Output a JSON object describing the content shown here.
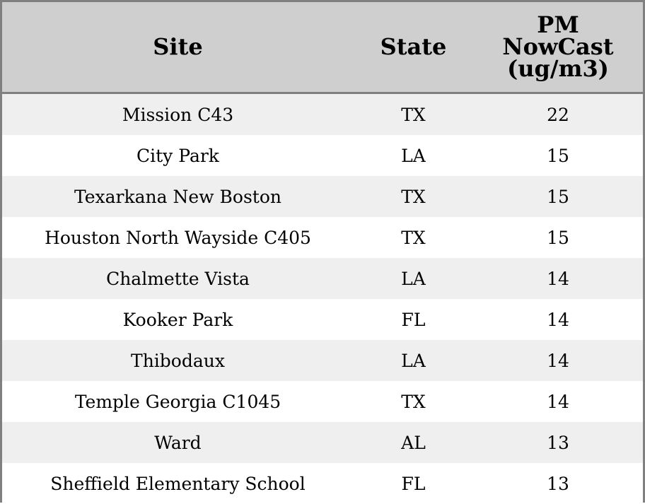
{
  "chart_data": {
    "type": "table",
    "columns": [
      "Site",
      "State",
      "PM NowCast (ug/m3)"
    ],
    "header_lines": {
      "pm": [
        "PM",
        "NowCast",
        "(ug/m3)"
      ]
    },
    "rows": [
      {
        "site": "Mission C43",
        "state": "TX",
        "pm": "22"
      },
      {
        "site": "City Park",
        "state": "LA",
        "pm": "15"
      },
      {
        "site": "Texarkana New Boston",
        "state": "TX",
        "pm": "15"
      },
      {
        "site": "Houston North Wayside C405",
        "state": "TX",
        "pm": "15"
      },
      {
        "site": "Chalmette Vista",
        "state": "LA",
        "pm": "14"
      },
      {
        "site": "Kooker Park",
        "state": "FL",
        "pm": "14"
      },
      {
        "site": "Thibodaux",
        "state": "LA",
        "pm": "14"
      },
      {
        "site": "Temple Georgia C1045",
        "state": "TX",
        "pm": "14"
      },
      {
        "site": "Ward",
        "state": "AL",
        "pm": "13"
      },
      {
        "site": "Sheffield Elementary School",
        "state": "FL",
        "pm": "13"
      }
    ],
    "colors": {
      "header_bg": "#cfcfcf",
      "row_alt_bg": "#efefef",
      "row_bg": "#ffffff",
      "border": "#808080"
    }
  }
}
